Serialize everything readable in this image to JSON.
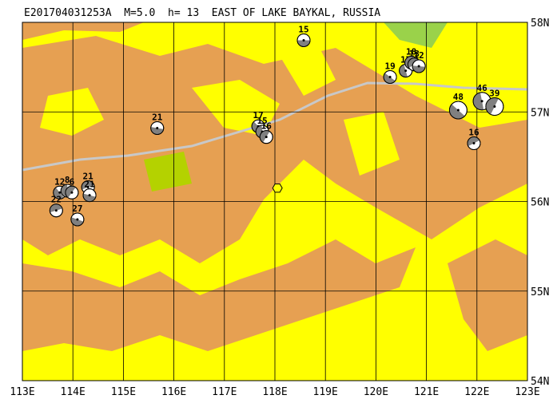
{
  "title": "E201704031253A  M=5.0  h= 13  EAST OF LAKE BAYKAL, RUSSIA",
  "map": {
    "lon_ticks": [
      {
        "value": 113,
        "label": "113E"
      },
      {
        "value": 114,
        "label": "114E"
      },
      {
        "value": 115,
        "label": "115E"
      },
      {
        "value": 116,
        "label": "116E"
      },
      {
        "value": 117,
        "label": "117E"
      },
      {
        "value": 118,
        "label": "118E"
      },
      {
        "value": 119,
        "label": "119E"
      },
      {
        "value": 120,
        "label": "120E"
      },
      {
        "value": 121,
        "label": "121E"
      },
      {
        "value": 122,
        "label": "122E"
      },
      {
        "value": 123,
        "label": "123E"
      }
    ],
    "lat_ticks": [
      {
        "value": 54,
        "label": "54N"
      },
      {
        "value": 55,
        "label": "55N"
      },
      {
        "value": 56,
        "label": "56N"
      },
      {
        "value": 57,
        "label": "57N"
      },
      {
        "value": 58,
        "label": "58N"
      }
    ],
    "epicenter": {
      "lon": 118.05,
      "lat": 56.15
    },
    "events": [
      {
        "lon": 118.57,
        "lat": 57.8,
        "depth": 15
      },
      {
        "lon": 120.28,
        "lat": 57.39,
        "depth": 19
      },
      {
        "lon": 120.59,
        "lat": 57.46,
        "depth": 17
      },
      {
        "lon": 120.7,
        "lat": 57.55,
        "depth": 18
      },
      {
        "lon": 120.76,
        "lat": 57.53,
        "depth": 13
      },
      {
        "lon": 120.85,
        "lat": 57.51,
        "depth": 12
      },
      {
        "lon": 121.63,
        "lat": 57.02,
        "depth": 48
      },
      {
        "lon": 122.1,
        "lat": 57.12,
        "depth": 46
      },
      {
        "lon": 122.35,
        "lat": 57.06,
        "depth": 39
      },
      {
        "lon": 121.94,
        "lat": 56.65,
        "depth": 16
      },
      {
        "lon": 115.67,
        "lat": 56.82,
        "depth": 21
      },
      {
        "lon": 117.67,
        "lat": 56.84,
        "depth": 17
      },
      {
        "lon": 117.75,
        "lat": 56.78,
        "depth": 15
      },
      {
        "lon": 117.83,
        "lat": 56.72,
        "depth": 16
      },
      {
        "lon": 114.3,
        "lat": 56.16,
        "depth": 21
      },
      {
        "lon": 114.33,
        "lat": 56.07,
        "depth": 21
      },
      {
        "lon": 113.74,
        "lat": 56.1,
        "depth": 12
      },
      {
        "lon": 113.89,
        "lat": 56.12,
        "depth": 8
      },
      {
        "lon": 113.98,
        "lat": 56.1,
        "depth": 6
      },
      {
        "lon": 113.67,
        "lat": 55.9,
        "depth": 22
      },
      {
        "lon": 114.09,
        "lat": 55.8,
        "depth": 27
      }
    ]
  }
}
